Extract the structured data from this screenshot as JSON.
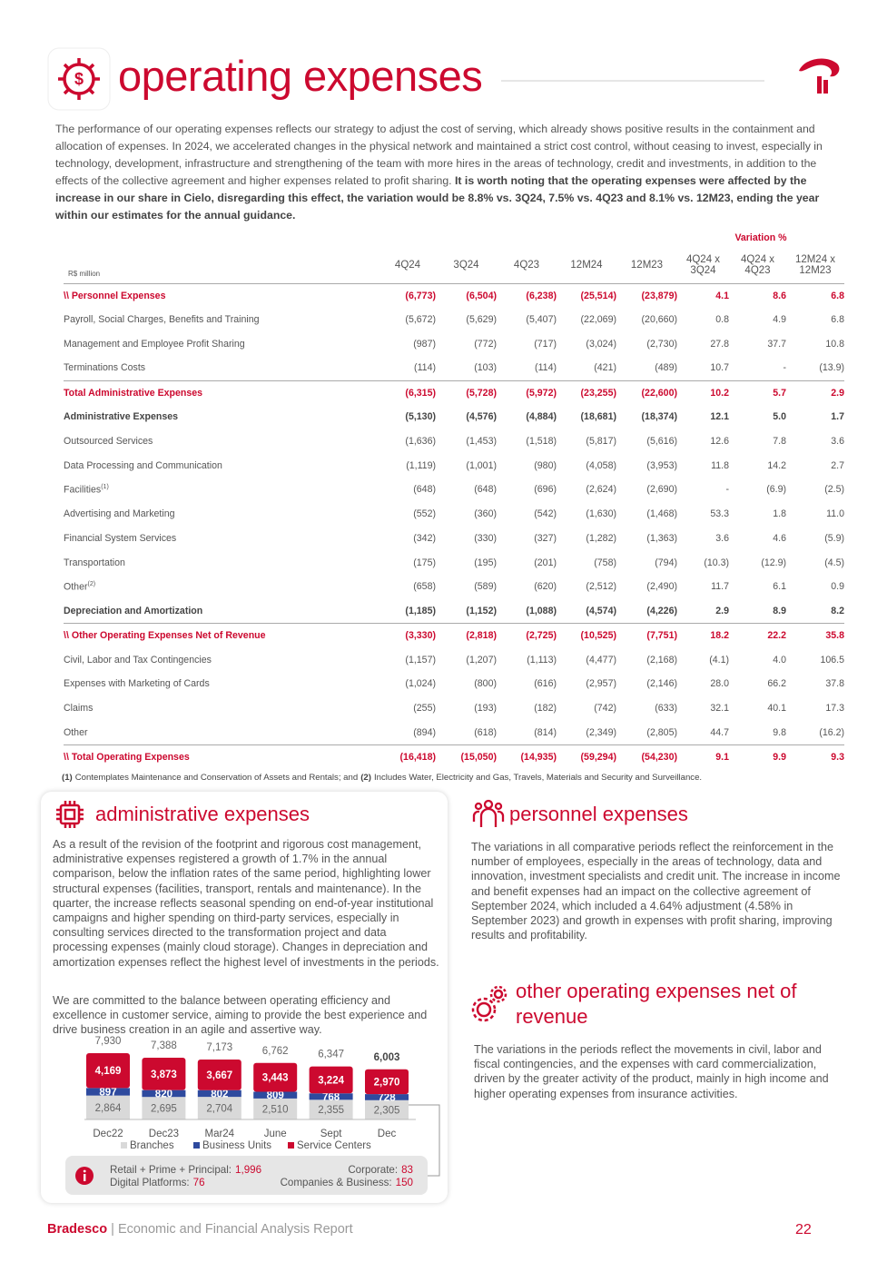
{
  "header": {
    "title": "operating expenses"
  },
  "intro": {
    "text": "The performance of our operating expenses reflects our strategy to adjust the cost of serving, which already shows positive results in the containment and allocation of expenses. In 2024, we accelerated changes in the physical network and maintained a strict cost control, without ceasing to invest, especially in technology, development, infrastructure and strengthening of the team with more hires in the areas of technology, credit and investments, in addition to the effects of the collective agreement and higher expenses related to profit sharing.",
    "bold": "It is worth noting that the operating expenses were affected by the increase in our share in Cielo, disregarding this effect, the variation would be 8.8% vs. 3Q24, 7.5% vs. 4Q23 and 8.1% vs. 12M23, ending the year within our estimates for the annual guidance."
  },
  "table": {
    "unit": "R$ million",
    "variation_header": "Variation %",
    "columns": [
      "4Q24",
      "3Q24",
      "4Q23",
      "12M24",
      "12M23",
      "4Q24 x 3Q24",
      "4Q24 x 4Q23",
      "12M24 x 12M23"
    ],
    "rows": [
      {
        "label": "\\\\ Personnel Expenses",
        "values": [
          "(6,773)",
          "(6,504)",
          "(6,238)",
          "(25,514)",
          "(23,879)",
          "4.1",
          "8.6",
          "6.8"
        ]
      },
      {
        "label": "Payroll, Social Charges, Benefits and Training",
        "values": [
          "(5,672)",
          "(5,629)",
          "(5,407)",
          "(22,069)",
          "(20,660)",
          "0.8",
          "4.9",
          "6.8"
        ]
      },
      {
        "label": "Management and Employee Profit Sharing",
        "values": [
          "(987)",
          "(772)",
          "(717)",
          "(3,024)",
          "(2,730)",
          "27.8",
          "37.7",
          "10.8"
        ]
      },
      {
        "label": "Terminations Costs",
        "values": [
          "(114)",
          "(103)",
          "(114)",
          "(421)",
          "(489)",
          "10.7",
          "-",
          "(13.9)"
        ]
      },
      {
        "label": "Total Administrative Expenses",
        "values": [
          "(6,315)",
          "(5,728)",
          "(5,972)",
          "(23,255)",
          "(22,600)",
          "10.2",
          "5.7",
          "2.9"
        ]
      },
      {
        "label": "Administrative Expenses",
        "values": [
          "(5,130)",
          "(4,576)",
          "(4,884)",
          "(18,681)",
          "(18,374)",
          "12.1",
          "5.0",
          "1.7"
        ]
      },
      {
        "label": "Outsourced Services",
        "values": [
          "(1,636)",
          "(1,453)",
          "(1,518)",
          "(5,817)",
          "(5,616)",
          "12.6",
          "7.8",
          "3.6"
        ]
      },
      {
        "label": "Data Processing and Communication",
        "values": [
          "(1,119)",
          "(1,001)",
          "(980)",
          "(4,058)",
          "(3,953)",
          "11.8",
          "14.2",
          "2.7"
        ]
      },
      {
        "label": "Facilities",
        "note": "(1)",
        "values": [
          "(648)",
          "(648)",
          "(696)",
          "(2,624)",
          "(2,690)",
          "-",
          "(6.9)",
          "(2.5)"
        ]
      },
      {
        "label": "Advertising and Marketing",
        "values": [
          "(552)",
          "(360)",
          "(542)",
          "(1,630)",
          "(1,468)",
          "53.3",
          "1.8",
          "11.0"
        ]
      },
      {
        "label": "Financial System Services",
        "values": [
          "(342)",
          "(330)",
          "(327)",
          "(1,282)",
          "(1,363)",
          "3.6",
          "4.6",
          "(5.9)"
        ]
      },
      {
        "label": "Transportation",
        "values": [
          "(175)",
          "(195)",
          "(201)",
          "(758)",
          "(794)",
          "(10.3)",
          "(12.9)",
          "(4.5)"
        ]
      },
      {
        "label": "Other",
        "note": "(2)",
        "values": [
          "(658)",
          "(589)",
          "(620)",
          "(2,512)",
          "(2,490)",
          "11.7",
          "6.1",
          "0.9"
        ]
      },
      {
        "label": "Depreciation and Amortization",
        "values": [
          "(1,185)",
          "(1,152)",
          "(1,088)",
          "(4,574)",
          "(4,226)",
          "2.9",
          "8.9",
          "8.2"
        ]
      },
      {
        "label": "\\\\ Other Operating Expenses Net of Revenue",
        "values": [
          "(3,330)",
          "(2,818)",
          "(2,725)",
          "(10,525)",
          "(7,751)",
          "18.2",
          "22.2",
          "35.8"
        ]
      },
      {
        "label": "Civil, Labor and Tax Contingencies",
        "values": [
          "(1,157)",
          "(1,207)",
          "(1,113)",
          "(4,477)",
          "(2,168)",
          "(4.1)",
          "4.0",
          "106.5"
        ]
      },
      {
        "label": "Expenses with Marketing of Cards",
        "values": [
          "(1,024)",
          "(800)",
          "(616)",
          "(2,957)",
          "(2,146)",
          "28.0",
          "66.2",
          "37.8"
        ]
      },
      {
        "label": "Claims",
        "values": [
          "(255)",
          "(193)",
          "(182)",
          "(742)",
          "(633)",
          "32.1",
          "40.1",
          "17.3"
        ]
      },
      {
        "label": "Other",
        "values": [
          "(894)",
          "(618)",
          "(814)",
          "(2,349)",
          "(2,805)",
          "44.7",
          "9.8",
          "(16.2)"
        ]
      },
      {
        "label": "\\\\ Total Operating Expenses",
        "values": [
          "(16,418)",
          "(15,050)",
          "(14,935)",
          "(59,294)",
          "(54,230)",
          "9.1",
          "9.9",
          "9.3"
        ]
      }
    ]
  },
  "footnotes": [
    {
      "mark": "(1)",
      "text": "Contemplates Maintenance and Conservation of Assets and Rentals; and"
    },
    {
      "mark": "(2)",
      "text": "Includes Water, Electricity and Gas, Travels, Materials and Security and Surveillance."
    }
  ],
  "admin": {
    "title": "administrative expenses",
    "paragraphs": [
      "As a result of the revision of the footprint and rigorous cost management, administrative expenses registered a growth of 1.7% in the annual comparison, below the inflation rates of the same period, highlighting lower structural expenses (facilities, transport, rentals and maintenance). In the quarter, the increase reflects seasonal spending on end-of-year institutional campaigns and higher spending on third-party services, especially in consulting services directed to the transformation project and data processing expenses (mainly cloud storage). Changes in depreciation and amortization expenses reflect the highest level of investments in the periods.",
      "We are committed to the balance between operating efficiency and excellence in customer service, aiming to provide the best experience and drive business creation in an agile and assertive way."
    ]
  },
  "chart": {
    "type": "bar",
    "stacked": true,
    "categories": [
      "Dec22",
      "Dec23",
      "Mar24",
      "June",
      "Sept",
      "Dec"
    ],
    "totals": [
      7930,
      7388,
      7173,
      6762,
      6347,
      6003
    ],
    "total_labels": [
      "7,930",
      "7,388",
      "7,173",
      "6,762",
      "6,347",
      "6,003"
    ],
    "series": [
      {
        "name": "Branches",
        "color": "#d9d9d9",
        "values": [
          2864,
          2695,
          2704,
          2510,
          2355,
          2305
        ],
        "value_labels": [
          "2,864",
          "2,695",
          "2,704",
          "2,510",
          "2,355",
          "2,305"
        ]
      },
      {
        "name": "Business Units",
        "color": "#2e4a9e",
        "values": [
          897,
          820,
          802,
          809,
          768,
          728
        ]
      },
      {
        "name": "Service Centers",
        "color": "#cc092f",
        "values": [
          4169,
          3873,
          3667,
          3443,
          3224,
          2970
        ],
        "value_labels": [
          "4,169",
          "3,873",
          "3,667",
          "3,443",
          "3,224",
          "2,970"
        ]
      }
    ]
  },
  "note": {
    "items": [
      {
        "label": "Retail + Prime + Principal:",
        "value": "1,996"
      },
      {
        "label": "Corporate:",
        "value": "83"
      },
      {
        "label": "Digital Platforms:",
        "value": "76"
      },
      {
        "label": "Companies & Business:",
        "value": "150"
      }
    ]
  },
  "personnel": {
    "title": "personnel expenses",
    "text": "The variations in all comparative periods reflect the reinforcement in the number of employees, especially in the areas of technology, data and innovation, investment specialists and credit unit. The increase in income and benefit expenses had an impact on the collective agreement of September 2024, which included a 4.64% adjustment (4.58% in September 2023) and growth in expenses with profit sharing, improving results and profitability."
  },
  "other": {
    "title": "other operating expenses net of revenue",
    "text": "The variations in the periods reflect the movements in civil, labor and fiscal contingencies, and the expenses with card commercialization, driven by the greater activity of the product, mainly in high income and higher operating expenses from insurance activities."
  },
  "footer": {
    "brand": "Bradesco",
    "separator": "|",
    "report": "Economic and Financial Analysis Report",
    "page": "22"
  }
}
